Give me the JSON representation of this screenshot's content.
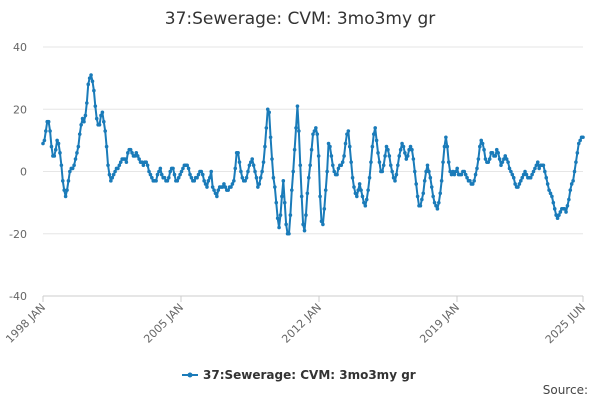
{
  "chart_data": {
    "type": "line",
    "title": "37:Sewerage: CVM: 3mo3my gr",
    "xlabel": "",
    "ylabel": "",
    "ylim": [
      -40,
      40
    ],
    "y_ticks": [
      40,
      20,
      0,
      -20,
      -40
    ],
    "x_tick_labels": [
      "1998 JAN",
      "2005 JAN",
      "2012 JAN",
      "2019 JAN",
      "2025 JUN"
    ],
    "x_range": [
      "1998 JAN",
      "2025 JUN"
    ],
    "grid": true,
    "legend_position": "bottom-center",
    "series": [
      {
        "name": "37:Sewerage: CVM: 3mo3my gr",
        "color": "#1a7bb9",
        "values": [
          9,
          10,
          13,
          16,
          16,
          13,
          8,
          5,
          5,
          7,
          10,
          9,
          6,
          2,
          -3,
          -6,
          -8,
          -6,
          -3,
          0,
          1,
          1,
          2,
          4,
          6,
          8,
          12,
          15,
          17,
          16,
          18,
          22,
          28,
          30,
          31,
          29,
          26,
          21,
          17,
          15,
          15,
          18,
          19,
          16,
          13,
          8,
          2,
          -1,
          -3,
          -2,
          -1,
          0,
          1,
          1,
          2,
          3,
          4,
          4,
          4,
          3,
          6,
          7,
          7,
          6,
          5,
          5,
          6,
          5,
          4,
          3,
          3,
          2,
          3,
          3,
          2,
          0,
          -1,
          -2,
          -3,
          -3,
          -3,
          -1,
          0,
          1,
          -1,
          -2,
          -2,
          -3,
          -3,
          -2,
          0,
          1,
          1,
          -1,
          -3,
          -3,
          -2,
          -1,
          0,
          1,
          2,
          2,
          2,
          1,
          -1,
          -2,
          -3,
          -3,
          -2,
          -2,
          -1,
          0,
          0,
          -1,
          -3,
          -4,
          -5,
          -3,
          -2,
          0,
          -5,
          -6,
          -7,
          -8,
          -6,
          -5,
          -5,
          -5,
          -4,
          -5,
          -6,
          -6,
          -5,
          -5,
          -4,
          -3,
          1,
          6,
          6,
          3,
          0,
          -2,
          -3,
          -3,
          -2,
          0,
          2,
          3,
          4,
          2,
          0,
          -2,
          -5,
          -4,
          -2,
          0,
          3,
          8,
          14,
          20,
          19,
          11,
          4,
          -2,
          -5,
          -10,
          -15,
          -18,
          -14,
          -8,
          -3,
          -10,
          -17,
          -20,
          -20,
          -14,
          -6,
          0,
          7,
          14,
          21,
          13,
          2,
          -8,
          -17,
          -19,
          -14,
          -7,
          -2,
          2,
          7,
          12,
          13,
          14,
          12,
          5,
          -8,
          -16,
          -17,
          -12,
          -6,
          0,
          9,
          8,
          5,
          2,
          0,
          -1,
          -1,
          1,
          2,
          2,
          3,
          5,
          9,
          12,
          13,
          8,
          3,
          -2,
          -5,
          -7,
          -8,
          -6,
          -4,
          -6,
          -8,
          -10,
          -11,
          -9,
          -6,
          -2,
          3,
          8,
          12,
          14,
          10,
          6,
          3,
          0,
          0,
          2,
          5,
          8,
          7,
          5,
          2,
          0,
          -2,
          -3,
          -1,
          2,
          5,
          7,
          9,
          8,
          6,
          4,
          5,
          7,
          8,
          7,
          4,
          0,
          -4,
          -8,
          -11,
          -11,
          -9,
          -7,
          -3,
          0,
          2,
          0,
          -2,
          -5,
          -8,
          -10,
          -11,
          -12,
          -10,
          -7,
          -3,
          3,
          8,
          11,
          8,
          3,
          0,
          -1,
          0,
          -1,
          0,
          1,
          -1,
          -1,
          -1,
          0,
          0,
          -1,
          -2,
          -3,
          -3,
          -4,
          -4,
          -3,
          -1,
          1,
          4,
          8,
          10,
          9,
          7,
          4,
          3,
          3,
          4,
          6,
          6,
          5,
          5,
          7,
          6,
          4,
          2,
          3,
          4,
          5,
          4,
          3,
          1,
          0,
          -1,
          -2,
          -4,
          -5,
          -5,
          -4,
          -3,
          -2,
          -1,
          0,
          -1,
          -2,
          -2,
          -2,
          -1,
          0,
          1,
          2,
          3,
          1,
          2,
          2,
          2,
          0,
          -2,
          -4,
          -6,
          -7,
          -8,
          -10,
          -12,
          -14,
          -15,
          -14,
          -13,
          -12,
          -12,
          -12,
          -13,
          -11,
          -9,
          -6,
          -4,
          -3,
          0,
          3,
          6,
          9,
          10,
          11,
          11
        ]
      }
    ]
  },
  "legend": {
    "label": "37:Sewerage: CVM: 3mo3my gr"
  },
  "credits": {
    "text": "Source:"
  }
}
